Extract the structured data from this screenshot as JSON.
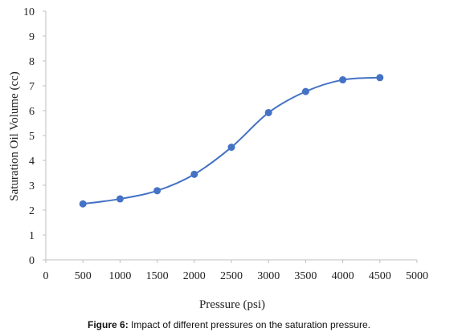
{
  "chart_data": {
    "type": "line",
    "title": "",
    "xlabel": "Pressure (psi)",
    "ylabel": "Saturation Oil Volume (cc)",
    "xlim": [
      0,
      5000
    ],
    "ylim": [
      0,
      10
    ],
    "xticks": [
      "0",
      "500",
      "1000",
      "1500",
      "2000",
      "2500",
      "3000",
      "3500",
      "4000",
      "4500",
      "5000"
    ],
    "yticks": [
      "0",
      "1",
      "2",
      "3",
      "4",
      "5",
      "6",
      "7",
      "8",
      "9",
      "10"
    ],
    "grid": false,
    "smooth": true,
    "series": [
      {
        "color": "#4472c4",
        "x": [
          500,
          1000,
          1500,
          2000,
          2500,
          3000,
          3500,
          4000,
          4500
        ],
        "y": [
          2.25,
          2.45,
          2.78,
          3.44,
          4.53,
          5.92,
          6.77,
          7.24,
          7.33
        ]
      }
    ]
  },
  "caption": {
    "label": "Figure 6:",
    "text": " Impact of different pressures on the saturation pressure."
  }
}
